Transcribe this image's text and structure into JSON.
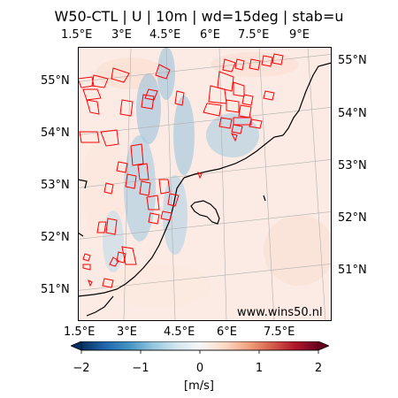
{
  "title": "W50-CTL | U | 10m | wd=15deg | stab=u",
  "top_lon_ticks": [
    "1.5°E",
    "3°E",
    "4.5°E",
    "6°E",
    "7.5°E",
    "9°E"
  ],
  "bottom_lon_ticks": [
    "1.5°E",
    "3°E",
    "4.5°E",
    "6°E",
    "7.5°E"
  ],
  "left_lat_ticks": [
    "55°N",
    "54°N",
    "53°N",
    "52°N",
    "51°N"
  ],
  "right_lat_ticks": [
    "55°N",
    "54°N",
    "53°N",
    "52°N",
    "51°N"
  ],
  "credit": "www.wins50.nl",
  "colorbar": {
    "label": "[m/s]",
    "ticks": [
      "−2",
      "−1",
      "0",
      "1",
      "2"
    ],
    "vmin": -2,
    "vmax": 2,
    "cmap": "RdBu_r",
    "extend": "both"
  },
  "colors": {
    "wind_farm_outline": "#ff0000",
    "coastline": "#000000",
    "gridline": "#b0b0b0"
  }
}
